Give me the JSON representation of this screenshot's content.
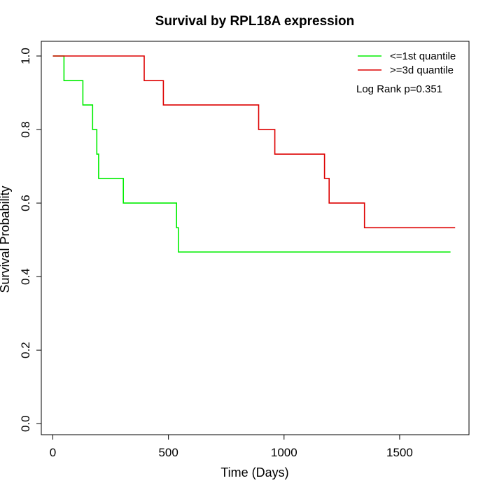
{
  "chart_data": {
    "type": "line",
    "title": "Survival by RPL18A expression",
    "xlabel": "Time (Days)",
    "ylabel": "Survival Probability",
    "xlim": [
      -50,
      1800
    ],
    "ylim": [
      -0.03,
      1.04
    ],
    "x_ticks": [
      0,
      500,
      1000,
      1500
    ],
    "x_tick_labels": [
      "0",
      "500",
      "1000",
      "1500"
    ],
    "y_ticks": [
      0,
      0.2,
      0.4,
      0.6,
      0.8,
      1.0
    ],
    "y_tick_labels": [
      "0.0",
      "0.2",
      "0.4",
      "0.6",
      "0.8",
      "1.0"
    ],
    "grid": false,
    "legend_position": "top-right",
    "annotation": "Log Rank p=0.351",
    "series": [
      {
        "name": "<=1st quantile",
        "color": "#00ee00",
        "step": true,
        "points": [
          [
            0,
            1.0
          ],
          [
            48,
            1.0
          ],
          [
            48,
            0.933
          ],
          [
            130,
            0.933
          ],
          [
            130,
            0.867
          ],
          [
            172,
            0.867
          ],
          [
            172,
            0.8
          ],
          [
            190,
            0.8
          ],
          [
            190,
            0.733
          ],
          [
            198,
            0.733
          ],
          [
            198,
            0.667
          ],
          [
            305,
            0.667
          ],
          [
            305,
            0.6
          ],
          [
            535,
            0.6
          ],
          [
            535,
            0.533
          ],
          [
            543,
            0.533
          ],
          [
            543,
            0.467
          ],
          [
            1720,
            0.467
          ]
        ]
      },
      {
        "name": ">=3d quantile",
        "color": "#dd0000",
        "step": true,
        "points": [
          [
            0,
            1.0
          ],
          [
            395,
            1.0
          ],
          [
            395,
            0.933
          ],
          [
            478,
            0.933
          ],
          [
            478,
            0.867
          ],
          [
            890,
            0.867
          ],
          [
            890,
            0.8
          ],
          [
            960,
            0.8
          ],
          [
            960,
            0.733
          ],
          [
            1175,
            0.733
          ],
          [
            1175,
            0.667
          ],
          [
            1195,
            0.667
          ],
          [
            1195,
            0.6
          ],
          [
            1348,
            0.6
          ],
          [
            1348,
            0.533
          ],
          [
            1740,
            0.533
          ]
        ]
      }
    ]
  }
}
